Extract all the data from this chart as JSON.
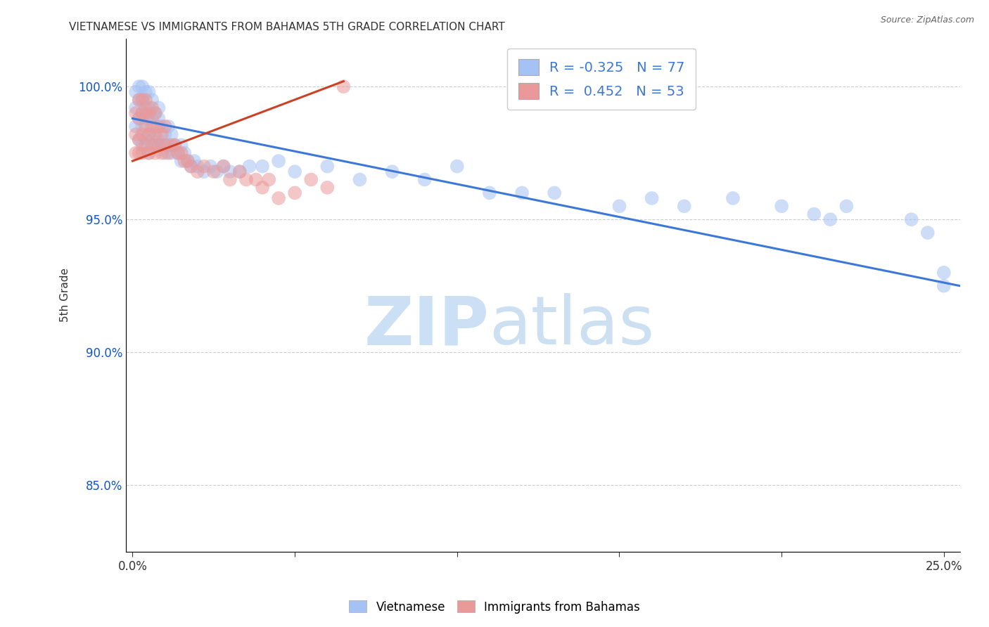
{
  "title": "VIETNAMESE VS IMMIGRANTS FROM BAHAMAS 5TH GRADE CORRELATION CHART",
  "source": "Source: ZipAtlas.com",
  "xlabel_ticks": [
    "0.0%",
    "",
    "",
    "",
    "",
    "25.0%"
  ],
  "xlabel_vals": [
    0.0,
    0.05,
    0.1,
    0.15,
    0.2,
    0.25
  ],
  "ylabel_ticks": [
    "85.0%",
    "90.0%",
    "95.0%",
    "100.0%"
  ],
  "ylabel_vals": [
    85.0,
    90.0,
    95.0,
    100.0
  ],
  "xlim": [
    -0.002,
    0.255
  ],
  "ylim": [
    82.5,
    101.8
  ],
  "ylabel_label": "5th Grade",
  "blue_R": -0.325,
  "blue_N": 77,
  "pink_R": 0.452,
  "pink_N": 53,
  "blue_color": "#a4c2f4",
  "pink_color": "#ea9999",
  "blue_line_color": "#3c78d8",
  "pink_line_color": "#cc4125",
  "background_color": "#ffffff",
  "grid_color": "#cccccc",
  "title_color": "#333333",
  "axis_tick_color": "#1155cc",
  "blue_scatter_x": [
    0.001,
    0.001,
    0.001,
    0.002,
    0.002,
    0.002,
    0.002,
    0.003,
    0.003,
    0.003,
    0.003,
    0.003,
    0.004,
    0.004,
    0.004,
    0.004,
    0.005,
    0.005,
    0.005,
    0.005,
    0.005,
    0.006,
    0.006,
    0.006,
    0.007,
    0.007,
    0.007,
    0.008,
    0.008,
    0.008,
    0.009,
    0.009,
    0.01,
    0.01,
    0.011,
    0.011,
    0.012,
    0.012,
    0.013,
    0.014,
    0.015,
    0.015,
    0.016,
    0.017,
    0.018,
    0.019,
    0.02,
    0.022,
    0.024,
    0.026,
    0.028,
    0.03,
    0.033,
    0.036,
    0.04,
    0.045,
    0.05,
    0.06,
    0.07,
    0.08,
    0.09,
    0.1,
    0.11,
    0.12,
    0.13,
    0.15,
    0.16,
    0.17,
    0.185,
    0.2,
    0.21,
    0.215,
    0.22,
    0.24,
    0.245,
    0.25,
    0.25
  ],
  "blue_scatter_y": [
    98.5,
    99.2,
    99.8,
    98.0,
    98.8,
    99.5,
    100.0,
    97.8,
    98.5,
    99.0,
    99.5,
    100.0,
    98.0,
    98.8,
    99.2,
    99.8,
    97.5,
    98.2,
    98.8,
    99.2,
    99.8,
    98.0,
    98.8,
    99.5,
    97.8,
    98.5,
    99.0,
    98.0,
    98.8,
    99.2,
    97.8,
    98.5,
    97.5,
    98.2,
    97.8,
    98.5,
    97.5,
    98.2,
    97.8,
    97.5,
    97.2,
    97.8,
    97.5,
    97.2,
    97.0,
    97.2,
    97.0,
    96.8,
    97.0,
    96.8,
    97.0,
    96.8,
    96.8,
    97.0,
    97.0,
    97.2,
    96.8,
    97.0,
    96.5,
    96.8,
    96.5,
    97.0,
    96.0,
    96.0,
    96.0,
    95.5,
    95.8,
    95.5,
    95.8,
    95.5,
    95.2,
    95.0,
    95.5,
    95.0,
    94.5,
    92.5,
    93.0
  ],
  "pink_scatter_x": [
    0.001,
    0.001,
    0.001,
    0.002,
    0.002,
    0.002,
    0.002,
    0.003,
    0.003,
    0.003,
    0.003,
    0.004,
    0.004,
    0.004,
    0.004,
    0.005,
    0.005,
    0.005,
    0.006,
    0.006,
    0.006,
    0.007,
    0.007,
    0.007,
    0.008,
    0.008,
    0.009,
    0.009,
    0.01,
    0.01,
    0.011,
    0.012,
    0.013,
    0.014,
    0.015,
    0.016,
    0.017,
    0.018,
    0.02,
    0.022,
    0.025,
    0.028,
    0.03,
    0.033,
    0.035,
    0.038,
    0.04,
    0.042,
    0.045,
    0.05,
    0.055,
    0.06,
    0.065
  ],
  "pink_scatter_y": [
    97.5,
    98.2,
    99.0,
    97.5,
    98.0,
    98.8,
    99.5,
    97.5,
    98.2,
    99.0,
    99.5,
    97.8,
    98.5,
    99.0,
    99.5,
    97.5,
    98.2,
    99.0,
    97.8,
    98.5,
    99.2,
    97.5,
    98.2,
    99.0,
    97.8,
    98.5,
    97.5,
    98.2,
    97.8,
    98.5,
    97.5,
    97.8,
    97.8,
    97.5,
    97.5,
    97.2,
    97.2,
    97.0,
    96.8,
    97.0,
    96.8,
    97.0,
    96.5,
    96.8,
    96.5,
    96.5,
    96.2,
    96.5,
    95.8,
    96.0,
    96.5,
    96.2,
    100.0
  ],
  "blue_line_x0": 0.0,
  "blue_line_x1": 0.255,
  "blue_line_y0": 98.8,
  "blue_line_y1": 92.5,
  "pink_line_x0": 0.0,
  "pink_line_x1": 0.065,
  "pink_line_y0": 97.2,
  "pink_line_y1": 100.2
}
